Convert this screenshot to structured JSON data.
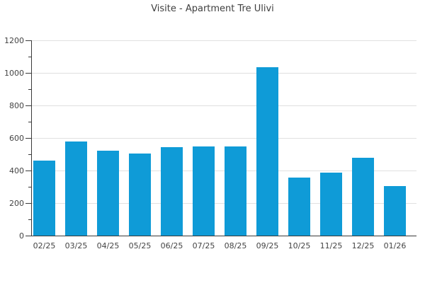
{
  "chart_data": {
    "type": "bar",
    "title": "Visite - Apartment Tre Ulivi",
    "categories": [
      "02/25",
      "03/25",
      "04/25",
      "05/25",
      "06/25",
      "07/25",
      "08/25",
      "09/25",
      "10/25",
      "11/25",
      "12/25",
      "01/26"
    ],
    "values": [
      460,
      580,
      520,
      505,
      545,
      550,
      550,
      1035,
      355,
      385,
      480,
      305
    ],
    "xlabel": "",
    "ylabel": "",
    "ylim": [
      0,
      1200
    ],
    "ytick_step": 200,
    "yminor_step": 100,
    "grid": "on",
    "legend": "none",
    "bar_color": "#0f9bd7",
    "gridline_color": "#e0e0e0",
    "axis_color": "#3a3a3a",
    "label_color": "#444444",
    "title_color": "#3f3f3f"
  }
}
